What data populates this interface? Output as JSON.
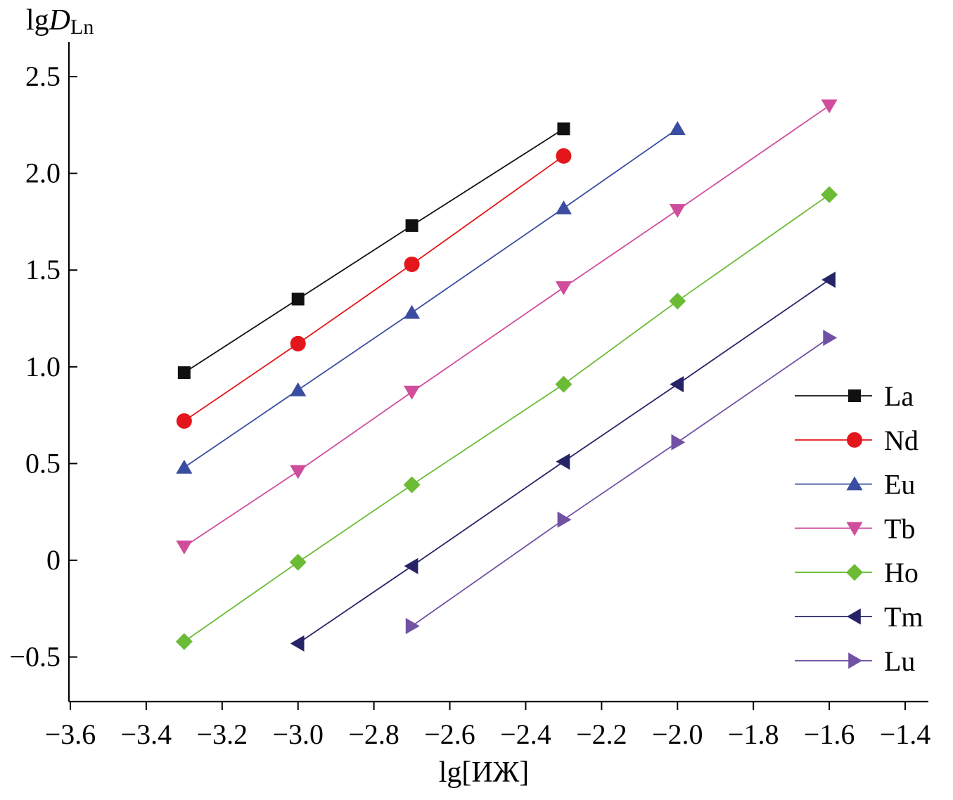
{
  "chart_data": {
    "type": "line",
    "title": "",
    "ylabel_parts": {
      "prefix": "lg",
      "var": "D",
      "sub": "Ln"
    },
    "xlabel": "lg[ИЖ]",
    "xlim": [
      -3.6,
      -1.4
    ],
    "ylim": [
      -0.75,
      2.75
    ],
    "xticks": [
      -3.6,
      -3.4,
      -3.2,
      -3.0,
      -2.8,
      -2.6,
      -2.4,
      -2.2,
      -2.0,
      -1.8,
      -1.6,
      -1.4
    ],
    "xtick_labels": [
      "−3.6",
      "−3.4",
      "−3.2",
      "−3.0",
      "−2.8",
      "−2.6",
      "−2.4",
      "−2.2",
      "−2.0",
      "−1.8",
      "−1.6",
      "−1.4"
    ],
    "yticks": [
      -0.5,
      0,
      0.5,
      1.0,
      1.5,
      2.0,
      2.5
    ],
    "ytick_labels": [
      "−0.5",
      "0",
      "0.5",
      "1.0",
      "1.5",
      "2.0",
      "2.5"
    ],
    "grid": false,
    "legend_position": "right",
    "series": [
      {
        "name": "La",
        "color": "#111111",
        "marker": "square",
        "x": [
          -3.3,
          -3.0,
          -2.7,
          -2.3
        ],
        "y": [
          0.97,
          1.35,
          1.73,
          2.23
        ]
      },
      {
        "name": "Nd",
        "color": "#e3161b",
        "marker": "circle",
        "x": [
          -3.3,
          -3.0,
          -2.7,
          -2.3
        ],
        "y": [
          0.72,
          1.12,
          1.53,
          2.09
        ]
      },
      {
        "name": "Eu",
        "color": "#3b4da0",
        "marker": "triangle-up",
        "x": [
          -3.3,
          -3.0,
          -2.7,
          -2.3,
          -2.0
        ],
        "y": [
          0.48,
          0.88,
          1.28,
          1.82,
          2.23
        ]
      },
      {
        "name": "Tb",
        "color": "#d04d9c",
        "marker": "triangle-down",
        "x": [
          -3.3,
          -3.0,
          -2.7,
          -2.3,
          -2.0,
          -1.6
        ],
        "y": [
          0.07,
          0.46,
          0.87,
          1.41,
          1.81,
          2.35
        ]
      },
      {
        "name": "Ho",
        "color": "#6cbb35",
        "marker": "diamond",
        "x": [
          -3.3,
          -3.0,
          -2.7,
          -2.3,
          -2.0,
          -1.6
        ],
        "y": [
          -0.42,
          -0.01,
          0.39,
          0.91,
          1.34,
          1.89
        ]
      },
      {
        "name": "Tm",
        "color": "#262466",
        "marker": "triangle-left",
        "x": [
          -3.0,
          -2.7,
          -2.3,
          -2.0,
          -1.6
        ],
        "y": [
          -0.43,
          -0.03,
          0.51,
          0.91,
          1.45
        ]
      },
      {
        "name": "Lu",
        "color": "#7151a4",
        "marker": "triangle-right",
        "x": [
          -2.7,
          -2.3,
          -2.0,
          -1.6
        ],
        "y": [
          -0.34,
          0.21,
          0.61,
          1.15
        ]
      }
    ]
  }
}
